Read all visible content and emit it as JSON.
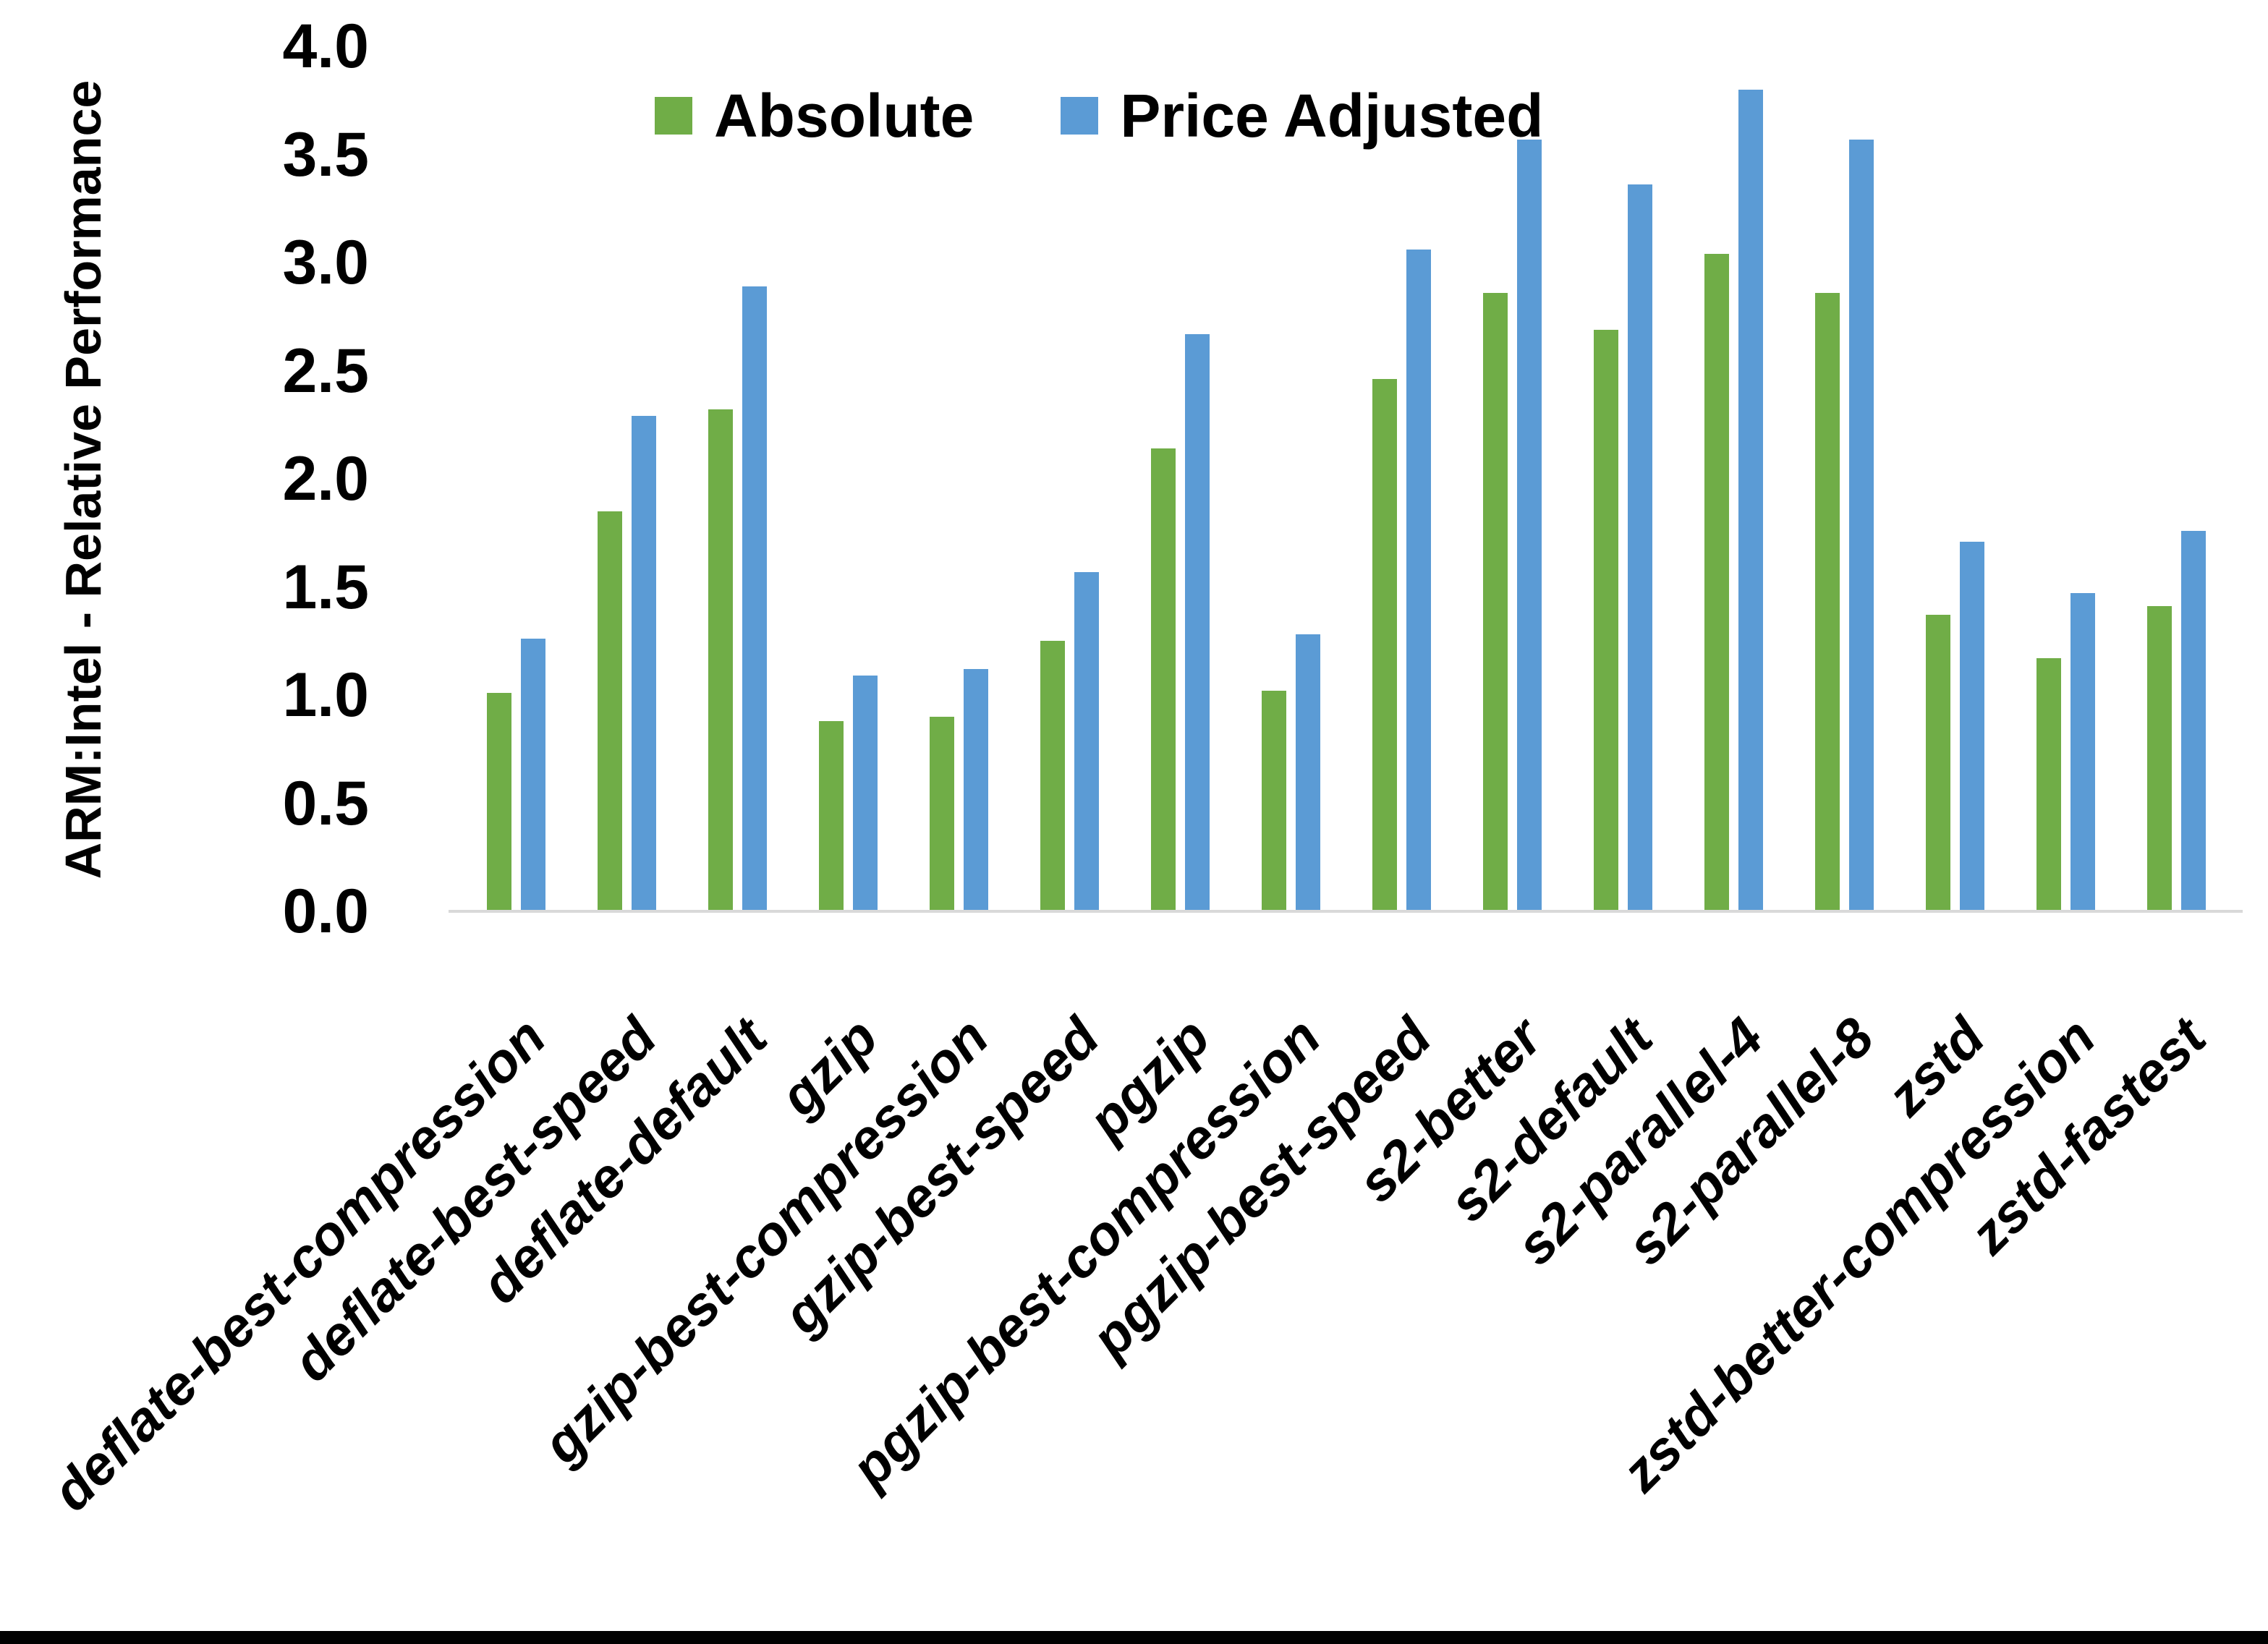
{
  "chart_data": {
    "type": "bar",
    "title": "",
    "xlabel": "",
    "ylabel": "ARM:Intel - Relative Performance",
    "ylim": [
      0.0,
      4.0
    ],
    "ytick_labels": [
      "4.0",
      "3.5",
      "3.0",
      "2.5",
      "2.0",
      "1.5",
      "1.0",
      "0.5",
      "0.0"
    ],
    "grid": false,
    "legend_position": "top-center",
    "axis_line_color": "#D9D9D9",
    "categories": [
      "deflate-best-compression",
      "deflate-best-speed",
      "deflate-default",
      "gzip",
      "gzip-best-compression",
      "gzip-best-speed",
      "pgzip",
      "pgzip-best-compression",
      "pgzip-best-speed",
      "s2-better",
      "s2-default",
      "s2-parallel-4",
      "s2-parallel-8",
      "zstd",
      "zstd-better-compression",
      "zstd-fastest"
    ],
    "series": [
      {
        "name": "Absolute",
        "color": "#70AD47",
        "values": [
          1.01,
          1.85,
          2.32,
          0.88,
          0.9,
          1.25,
          2.14,
          1.02,
          2.46,
          2.86,
          2.69,
          3.04,
          2.86,
          1.37,
          1.17,
          1.41
        ]
      },
      {
        "name": "Price Adjusted",
        "color": "#5B9BD5",
        "values": [
          1.26,
          2.29,
          2.89,
          1.09,
          1.12,
          1.57,
          2.67,
          1.28,
          3.06,
          3.57,
          3.36,
          3.8,
          3.57,
          1.71,
          1.47,
          1.76
        ]
      }
    ]
  },
  "frame": {
    "bottom_bar_color": "#000000"
  }
}
